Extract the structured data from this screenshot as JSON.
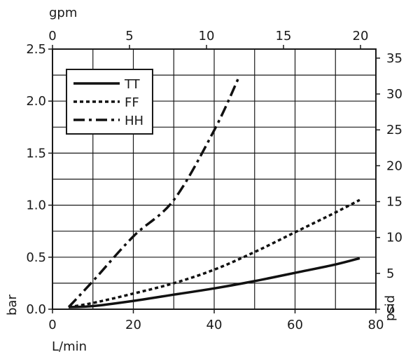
{
  "chart_data": {
    "type": "line",
    "x_bottom": {
      "label": "L/min",
      "range": [
        0,
        80
      ],
      "ticks": [
        0,
        20,
        40,
        60,
        80
      ]
    },
    "x_top": {
      "label": "gpm",
      "range": [
        0,
        21
      ],
      "ticks": [
        0,
        5,
        10,
        15,
        20
      ]
    },
    "y_left": {
      "label": "bar",
      "range": [
        0,
        2.5
      ],
      "ticks": [
        "0.0",
        "0.5",
        "1.0",
        "1.5",
        "2.0",
        "2.5"
      ]
    },
    "y_right": {
      "label": "psid",
      "range": [
        0,
        36.26
      ],
      "ticks": [
        0,
        5,
        10,
        15,
        20,
        25,
        30,
        35
      ]
    },
    "grid": true,
    "legend": {
      "placement": "top-left"
    },
    "series": [
      {
        "name": "TT",
        "style": "solid",
        "x": [
          4,
          10,
          20,
          30,
          40,
          50,
          60,
          70,
          76
        ],
        "y": [
          0.02,
          0.03,
          0.08,
          0.14,
          0.2,
          0.27,
          0.35,
          0.43,
          0.49
        ]
      },
      {
        "name": "FF",
        "style": "dotted",
        "x": [
          4,
          10,
          20,
          30,
          40,
          50,
          60,
          70,
          76
        ],
        "y": [
          0.02,
          0.06,
          0.15,
          0.25,
          0.38,
          0.55,
          0.74,
          0.93,
          1.05
        ]
      },
      {
        "name": "HH",
        "style": "dashdot",
        "x": [
          4,
          10,
          20,
          30,
          40,
          46
        ],
        "y": [
          0.02,
          0.27,
          0.7,
          1.05,
          1.72,
          2.22
        ]
      }
    ]
  }
}
